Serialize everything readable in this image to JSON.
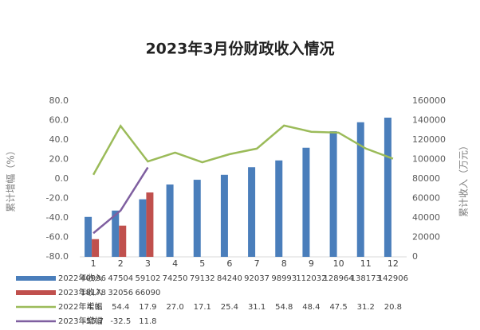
{
  "chart_data": {
    "type": "bar_line_table",
    "title": "2023年3月份财政收入情况",
    "ylabel": "累计增幅（%）",
    "y2label": "累计收入（万元）",
    "categories": [
      "1",
      "2",
      "3",
      "4",
      "5",
      "6",
      "7",
      "8",
      "9",
      "10",
      "11",
      "12"
    ],
    "ylim": [
      -80,
      80
    ],
    "yticks": [
      {
        "value": -80,
        "label": "-80.0"
      },
      {
        "value": -60,
        "label": "-60.0"
      },
      {
        "value": -40,
        "label": "-40.0"
      },
      {
        "value": -20,
        "label": "-20.0"
      },
      {
        "value": 0,
        "label": "0.0"
      },
      {
        "value": 20,
        "label": "20.0"
      },
      {
        "value": 40,
        "label": "40.0"
      },
      {
        "value": 60,
        "label": "60.0"
      },
      {
        "value": 80,
        "label": "80.0"
      }
    ],
    "y2lim": [
      0,
      160000
    ],
    "y2ticks": [
      0,
      20000,
      40000,
      60000,
      80000,
      100000,
      120000,
      140000,
      160000
    ],
    "series": [
      {
        "name": "2022年收入",
        "kind": "bar",
        "axis": "y2",
        "color": "#4a7ebb",
        "values": [
          40996,
          47504,
          59102,
          74250,
          79132,
          84240,
          92037,
          98993,
          112032,
          128964,
          138173,
          142906
        ]
      },
      {
        "name": "2023年收入",
        "kind": "bar",
        "axis": "y2",
        "color": "#c0504d",
        "values": [
          18178,
          32056,
          66090,
          null,
          null,
          null,
          null,
          null,
          null,
          null,
          null,
          null
        ]
      },
      {
        "name": "2022年增幅",
        "kind": "line",
        "color": "#9bbb59",
        "values": [
          4.3,
          54.4,
          17.9,
          27.0,
          17.1,
          25.4,
          31.1,
          54.8,
          48.4,
          47.5,
          31.2,
          20.8
        ],
        "value_labels": [
          "4.3",
          "54.4",
          "17.9",
          "27.0",
          "17.1",
          "25.4",
          "31.1",
          "54.8",
          "48.4",
          "47.5",
          "31.2",
          "20.8"
        ]
      },
      {
        "name": "2023年增幅",
        "kind": "line",
        "color": "#7f5fa0",
        "values": [
          -55.7,
          -32.5,
          11.8,
          null,
          null,
          null,
          null,
          null,
          null,
          null,
          null,
          null
        ],
        "value_labels": [
          "-55.7",
          "-32.5",
          "11.8",
          null,
          null,
          null,
          null,
          null,
          null,
          null,
          null,
          null
        ]
      }
    ]
  }
}
